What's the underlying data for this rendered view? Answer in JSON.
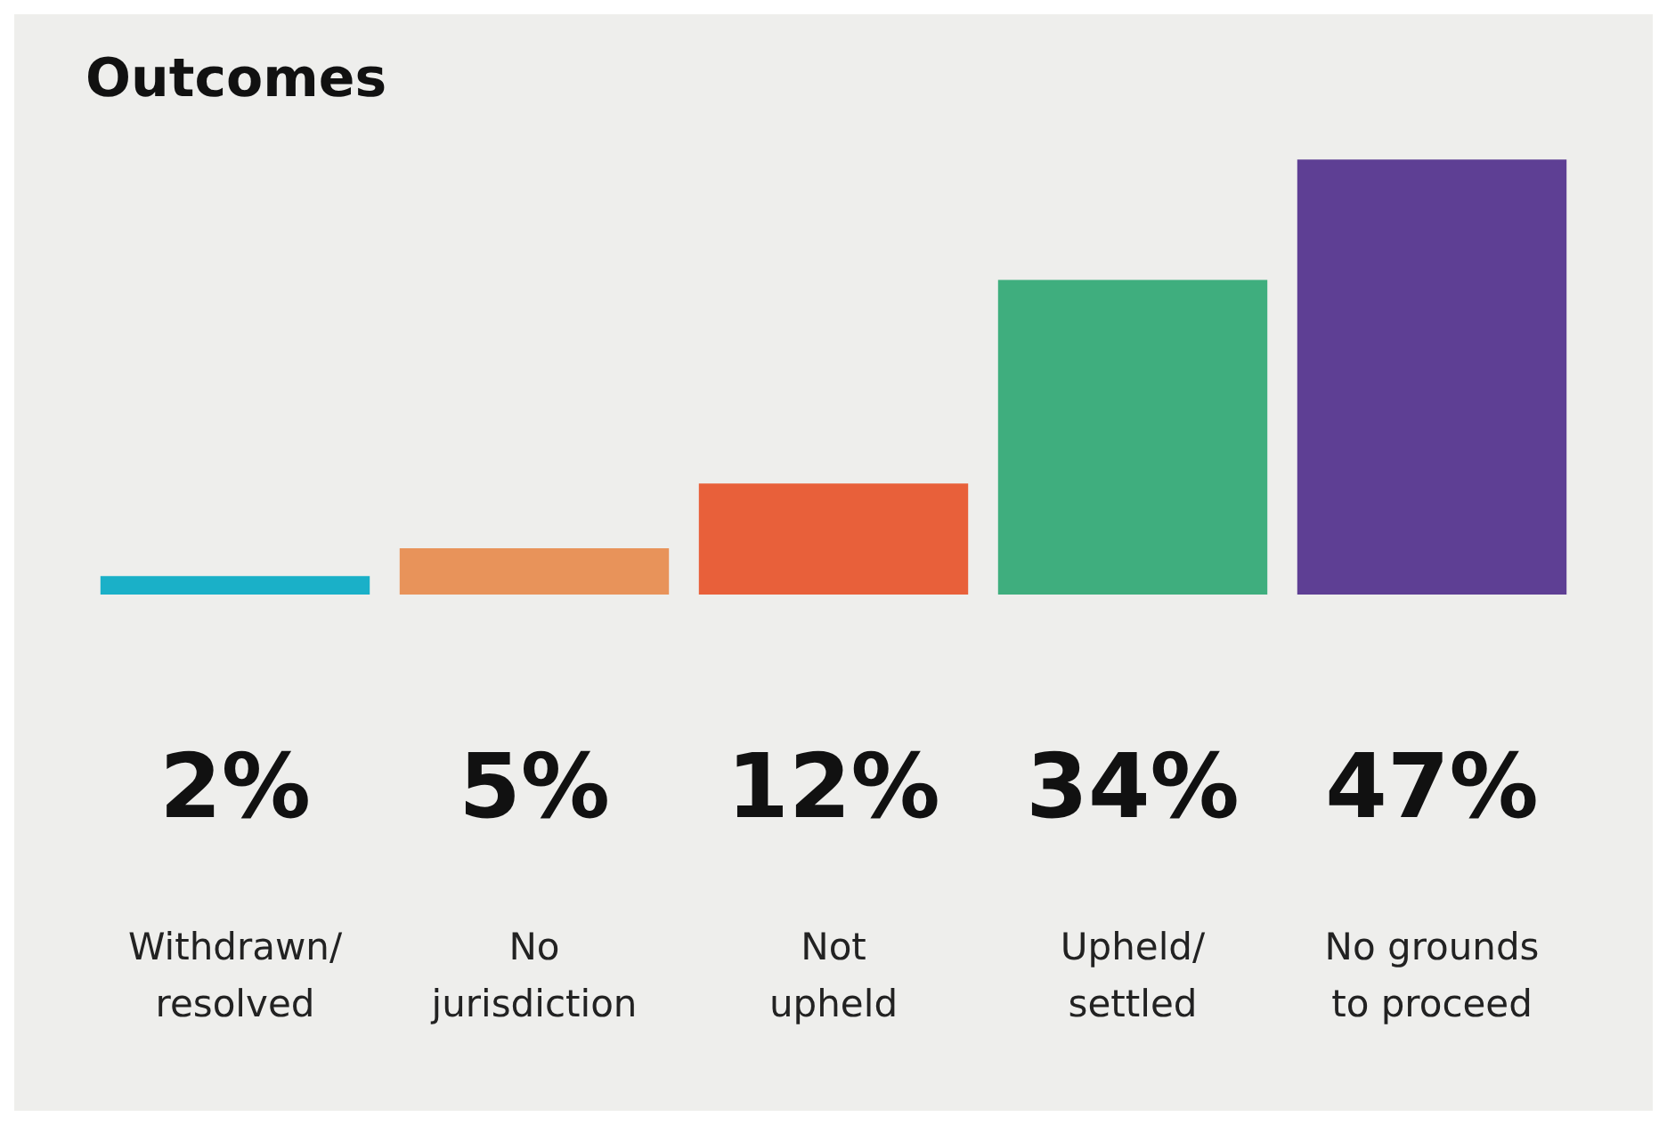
{
  "chart_data": {
    "type": "bar",
    "title": "Outcomes",
    "categories": [
      "Withdrawn/ resolved",
      "No jurisdiction",
      "Not upheld",
      "Upheld/ settled",
      "No grounds to proceed"
    ],
    "values": [
      2,
      5,
      12,
      34,
      47
    ],
    "colors": [
      "#1ab0c8",
      "#e8935a",
      "#e8603a",
      "#3fae7e",
      "#5e3f94"
    ],
    "value_labels": [
      "2%",
      "5%",
      "12%",
      "34%",
      "47%"
    ]
  }
}
